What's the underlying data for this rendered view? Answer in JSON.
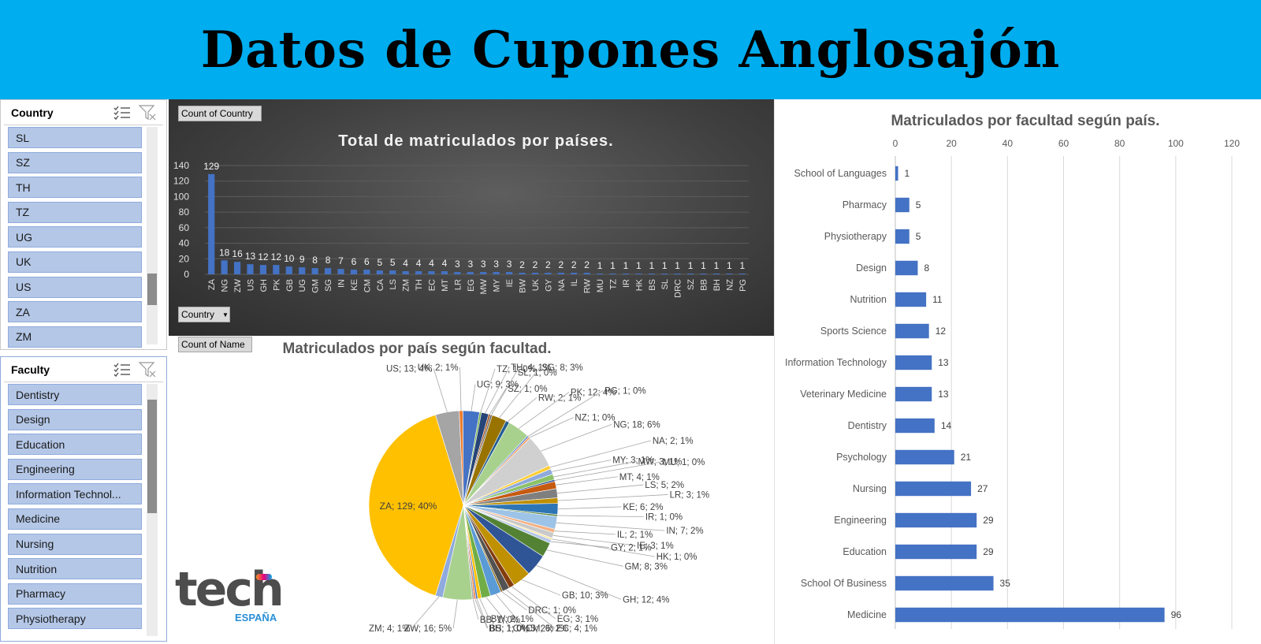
{
  "header": {
    "title": "Datos de Cupones Anglosajón"
  },
  "slicer_country": {
    "title": "Country",
    "items": [
      {
        "label": "SL"
      },
      {
        "label": "SZ"
      },
      {
        "label": "TH"
      },
      {
        "label": "TZ"
      },
      {
        "label": "UG"
      },
      {
        "label": "UK"
      },
      {
        "label": "US"
      },
      {
        "label": "ZA"
      },
      {
        "label": "ZM"
      }
    ]
  },
  "slicer_faculty": {
    "title": "Faculty",
    "items": [
      {
        "label": "Dentistry"
      },
      {
        "label": "Design"
      },
      {
        "label": "Education"
      },
      {
        "label": "Engineering"
      },
      {
        "label": "Information Technol..."
      },
      {
        "label": "Medicine"
      },
      {
        "label": "Nursing"
      },
      {
        "label": "Nutrition"
      },
      {
        "label": "Pharmacy"
      },
      {
        "label": "Physiotherapy"
      }
    ]
  },
  "pivot": {
    "count_country": "Count of Country",
    "country_field": "Country",
    "count_name": "Count of Name"
  },
  "logo": {
    "text": "tech",
    "sub": "ESPAÑA"
  },
  "colors": {
    "header_bg": "#00adef",
    "bar": "#4472c4",
    "slicer_item": "#b4c7e7"
  },
  "chart_data": [
    {
      "type": "bar",
      "title": "Total de matriculados por países.",
      "categories": [
        "ZA",
        "NG",
        "ZW",
        "US",
        "GH",
        "PK",
        "GB",
        "UG",
        "GM",
        "SG",
        "IN",
        "KE",
        "CM",
        "CA",
        "LS",
        "ZM",
        "TH",
        "EC",
        "MT",
        "LR",
        "EG",
        "MW",
        "MY",
        "IE",
        "BW",
        "UK",
        "GY",
        "NA",
        "IL",
        "RW",
        "MU",
        "TZ",
        "IR",
        "HK",
        "BS",
        "SL",
        "DRC",
        "SZ",
        "BB",
        "BH",
        "NZ",
        "PG"
      ],
      "values": [
        129,
        18,
        16,
        13,
        12,
        12,
        10,
        9,
        8,
        8,
        7,
        6,
        6,
        5,
        5,
        4,
        4,
        4,
        4,
        3,
        3,
        3,
        3,
        3,
        2,
        2,
        2,
        2,
        2,
        2,
        1,
        1,
        1,
        1,
        1,
        1,
        1,
        1,
        1,
        1,
        1,
        1
      ],
      "yticks": [
        "0",
        "20",
        "40",
        "60",
        "80",
        "100",
        "120",
        "140"
      ],
      "ylim": [
        0,
        140
      ],
      "grid": true
    },
    {
      "type": "pie",
      "title": "Matriculados por país según facultad.",
      "slices": [
        {
          "label": "ZA; 129; 40%",
          "value": 129,
          "color": "#ffc000"
        },
        {
          "label": "US; 13; 4%",
          "value": 13,
          "color": "#a5a5a5"
        },
        {
          "label": "UK; 2; 1%",
          "value": 2,
          "color": "#ed7d31"
        },
        {
          "label": "UG; 9; 3%",
          "value": 9,
          "color": "#4472c4"
        },
        {
          "label": "TZ; 1; 0%",
          "value": 1,
          "color": "#70ad47"
        },
        {
          "label": "TH; 4; 1%",
          "value": 4,
          "color": "#264478"
        },
        {
          "label": "SZ; 1; 0%",
          "value": 1,
          "color": "#9e480e"
        },
        {
          "label": "SL; 1; 0%",
          "value": 1,
          "color": "#636363"
        },
        {
          "label": "SG; 8; 3%",
          "value": 8,
          "color": "#997300"
        },
        {
          "label": "RW; 2; 1%",
          "value": 2,
          "color": "#255e91"
        },
        {
          "label": "PK; 12; 4%",
          "value": 12,
          "color": "#a9d18e"
        },
        {
          "label": "PG; 1; 0%",
          "value": 1,
          "color": "#698ed0"
        },
        {
          "label": "NZ; 1; 0%",
          "value": 1,
          "color": "#f1975a"
        },
        {
          "label": "NG; 18; 6%",
          "value": 18,
          "color": "#d0d0d0"
        },
        {
          "label": "NA; 2; 1%",
          "value": 2,
          "color": "#ffcd33"
        },
        {
          "label": "MY; 3; 1%",
          "value": 3,
          "color": "#8faadc"
        },
        {
          "label": "MW; 3; 1%",
          "value": 3,
          "color": "#8cc168"
        },
        {
          "label": "MU; 1; 0%",
          "value": 1,
          "color": "#2f5597"
        },
        {
          "label": "MT; 4; 1%",
          "value": 4,
          "color": "#c55a11"
        },
        {
          "label": "LS; 5; 2%",
          "value": 5,
          "color": "#7f7f7f"
        },
        {
          "label": "LR; 3; 1%",
          "value": 3,
          "color": "#bf8f00"
        },
        {
          "label": "KE; 6; 2%",
          "value": 6,
          "color": "#2e75b6"
        },
        {
          "label": "IR; 1; 0%",
          "value": 1,
          "color": "#548235"
        },
        {
          "label": "IN; 7; 2%",
          "value": 7,
          "color": "#9dc3e6"
        },
        {
          "label": "IL; 2; 1%",
          "value": 2,
          "color": "#f4b183"
        },
        {
          "label": "IE; 3; 1%",
          "value": 3,
          "color": "#c9c9c9"
        },
        {
          "label": "HK; 1; 0%",
          "value": 1,
          "color": "#ffe699"
        },
        {
          "label": "GY; 2; 1%",
          "value": 2,
          "color": "#b4c7e7"
        },
        {
          "label": "GM; 8; 3%",
          "value": 8,
          "color": "#548235"
        },
        {
          "label": "GH; 12; 4%",
          "value": 12,
          "color": "#2f5597"
        },
        {
          "label": "GB; 10; 3%",
          "value": 10,
          "color": "#bf9000"
        },
        {
          "label": "EG; 3; 1%",
          "value": 3,
          "color": "#833c0b"
        },
        {
          "label": "EC; 4; 1%",
          "value": 4,
          "color": "#525252"
        },
        {
          "label": "DRC; 1; 0%",
          "value": 1,
          "color": "#7f6000"
        },
        {
          "label": "CM; 6; 2%",
          "value": 6,
          "color": "#5b9bd5"
        },
        {
          "label": "CA; 5; 2%",
          "value": 5,
          "color": "#70ad47"
        },
        {
          "label": "BW; 2; 1%",
          "value": 2,
          "color": "#ffc000"
        },
        {
          "label": "BS; 1; 0%",
          "value": 1,
          "color": "#4472c4"
        },
        {
          "label": "BH; 1; 0%",
          "value": 1,
          "color": "#ed7d31"
        },
        {
          "label": "BB; 1; 0%",
          "value": 1,
          "color": "#a5a5a5"
        },
        {
          "label": "ZW; 16; 5%",
          "value": 16,
          "color": "#a9d18e"
        },
        {
          "label": "ZM; 4; 1%",
          "value": 4,
          "color": "#8faadc"
        }
      ]
    },
    {
      "type": "bar",
      "orientation": "horizontal",
      "title": "Matriculados por facultad según país.",
      "categories": [
        "School of Languages",
        "Pharmacy",
        "Physiotherapy",
        "Design",
        "Nutrition",
        "Sports Science",
        "Information Technology",
        "Veterinary Medicine",
        "Dentistry",
        "Psychology",
        "Nursing",
        "Engineering",
        "Education",
        "School Of Business",
        "Medicine"
      ],
      "values": [
        1,
        5,
        5,
        8,
        11,
        12,
        13,
        13,
        14,
        21,
        27,
        29,
        29,
        35,
        96
      ],
      "xticks": [
        "0",
        "20",
        "40",
        "60",
        "80",
        "100",
        "120"
      ],
      "xlim": [
        0,
        120
      ],
      "grid": true
    }
  ]
}
